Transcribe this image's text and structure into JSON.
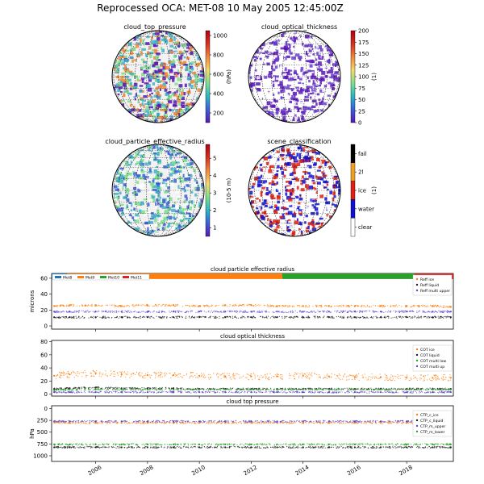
{
  "title": "Reprocessed OCA: MET-08 10 May 2005  12:45:00Z",
  "maps": [
    {
      "title": "cloud_top_pressure",
      "cbar_label": "(hPa)",
      "cbar_ticks": [
        "1000",
        "800",
        "600",
        "400",
        "200"
      ],
      "cbar_range": [
        100,
        1050
      ],
      "colormap": [
        "#5b16b8",
        "#3b5fd8",
        "#2bb6c8",
        "#7ee08a",
        "#f7d96b",
        "#f0883a",
        "#d7301f",
        "#b00010"
      ],
      "land_color": "#f2f2f2",
      "dominant_colors": [
        "#f0883a",
        "#3fb0c8",
        "#5b16b8",
        "#7ee08a"
      ]
    },
    {
      "title": "cloud_optical_thickness",
      "cbar_label": "(1)",
      "cbar_ticks": [
        "200",
        "175",
        "150",
        "125",
        "100",
        "75",
        "50",
        "25",
        "0"
      ],
      "cbar_range": [
        0,
        200
      ],
      "colormap": [
        "#5b16b8",
        "#3b5fd8",
        "#2bb6c8",
        "#7ee08a",
        "#f7d96b",
        "#f0883a",
        "#d7301f",
        "#b00010"
      ],
      "land_color": "#ffffff",
      "dominant_colors": [
        "#5b16b8",
        "#6a3fd0",
        "#ffffff"
      ]
    },
    {
      "title": "cloud_particle_effective_radius",
      "cbar_label": "(10-5 m)",
      "cbar_ticks": [
        "5",
        "4",
        "3",
        "2",
        "1"
      ],
      "cbar_range": [
        0.5,
        5.8
      ],
      "colormap": [
        "#5b16b8",
        "#3b5fd8",
        "#2bb6c8",
        "#7ee08a",
        "#f7d96b",
        "#f0883a",
        "#d7301f",
        "#b00010"
      ],
      "land_color": "#f2f2f2",
      "dominant_colors": [
        "#3fb0c8",
        "#3b5fd8",
        "#7ee08a",
        "#ffffff"
      ]
    },
    {
      "title": "scene_classification",
      "cbar_label": "(1)",
      "cbar_ticks": [
        "fail",
        "2l",
        "ice",
        "water",
        "clear"
      ],
      "categorical_colors": [
        "#000000",
        "#f0a020",
        "#e02010",
        "#1010d0",
        "#ffffff"
      ],
      "land_color": "#ffffff",
      "dominant_colors": [
        "#1010d0",
        "#e02010",
        "#ffffff"
      ]
    }
  ],
  "chart_data": [
    {
      "type": "scatter",
      "title": "cloud particle effective radius",
      "ylabel": "microns",
      "xlim": [
        2004.3,
        2019.8
      ],
      "ylim": [
        -4,
        66
      ],
      "yticks": [
        0,
        20,
        40,
        60
      ],
      "satellite_bar": {
        "y": 63,
        "segments": [
          {
            "name": "Met8",
            "color": "#1f77b4",
            "x": [
              2004.3,
              2004.9
            ]
          },
          {
            "name": "Met9",
            "color": "#ff7f0e",
            "x": [
              2004.9,
              2013.2
            ]
          },
          {
            "name": "Met10",
            "color": "#2ca02c",
            "x": [
              2013.2,
              2018.3
            ]
          },
          {
            "name": "Met11",
            "color": "#d62728",
            "x": [
              2018.3,
              2019.8
            ]
          }
        ]
      },
      "series": [
        {
          "name": "Reff ice",
          "color": "#ff7f0e",
          "x": [
            2004.4,
            2005.0,
            2006.0,
            2007.0,
            2008.0,
            2009.0,
            2010.0,
            2011.0,
            2012.0,
            2013.0,
            2014.0,
            2015.0,
            2016.0,
            2017.0,
            2018.0,
            2019.0,
            2019.7
          ],
          "y": [
            25,
            26,
            26,
            25,
            26,
            26,
            25,
            26,
            26,
            25,
            25,
            25,
            25,
            25,
            25,
            25,
            24
          ]
        },
        {
          "name": "Reff liquid",
          "color": "#1f1f1f",
          "x": [
            2004.4,
            2005.0,
            2006.0,
            2007.0,
            2008.0,
            2009.0,
            2010.0,
            2011.0,
            2012.0,
            2013.0,
            2014.0,
            2015.0,
            2016.0,
            2017.0,
            2018.0,
            2019.0,
            2019.7
          ],
          "y": [
            11,
            11,
            11,
            11,
            11,
            11,
            11,
            11,
            11,
            11,
            11,
            11,
            11,
            11,
            11,
            11,
            11
          ]
        },
        {
          "name": "Reff multi upper",
          "color": "#5a48d8",
          "x": [
            2004.4,
            2005.0,
            2006.0,
            2007.0,
            2008.0,
            2009.0,
            2010.0,
            2011.0,
            2012.0,
            2013.0,
            2014.0,
            2015.0,
            2016.0,
            2017.0,
            2018.0,
            2019.0,
            2019.7
          ],
          "y": [
            18,
            18,
            18,
            18,
            18,
            18,
            18,
            18,
            18,
            18,
            18,
            18,
            18,
            18,
            18,
            18,
            18
          ]
        }
      ],
      "legend": "top-right"
    },
    {
      "type": "scatter",
      "title": "cloud optical thickness",
      "ylabel": "",
      "xlim": [
        2004.3,
        2019.8
      ],
      "ylim": [
        -3,
        82
      ],
      "yticks": [
        0,
        20,
        40,
        60,
        80
      ],
      "series": [
        {
          "name": "COT ice",
          "color": "#ff7f0e",
          "x": [
            2004.4,
            2005.0,
            2006.0,
            2007.0,
            2008.0,
            2009.0,
            2010.0,
            2011.0,
            2012.0,
            2013.0,
            2014.0,
            2015.0,
            2016.0,
            2017.0,
            2018.0,
            2019.0,
            2019.7
          ],
          "y": [
            28,
            30,
            32,
            30,
            29,
            29,
            28,
            27,
            27,
            27,
            28,
            27,
            26,
            26,
            25,
            25,
            25
          ]
        },
        {
          "name": "COT liquid",
          "color": "#1f1f1f",
          "x": [
            2004.4,
            2005.0,
            2006.0,
            2007.0,
            2008.0,
            2009.0,
            2010.0,
            2011.0,
            2012.0,
            2013.0,
            2014.0,
            2015.0,
            2016.0,
            2017.0,
            2018.0,
            2019.0,
            2019.7
          ],
          "y": [
            8,
            9,
            10,
            9,
            9,
            9,
            8,
            8,
            8,
            8,
            8,
            8,
            8,
            8,
            8,
            8,
            8
          ]
        },
        {
          "name": "COT multi low",
          "color": "#2ca02c",
          "x": [
            2004.4,
            2005.0,
            2006.0,
            2007.0,
            2008.0,
            2009.0,
            2010.0,
            2011.0,
            2012.0,
            2013.0,
            2014.0,
            2015.0,
            2016.0,
            2017.0,
            2018.0,
            2019.0,
            2019.7
          ],
          "y": [
            6,
            7,
            7,
            7,
            7,
            7,
            7,
            7,
            7,
            7,
            7,
            7,
            7,
            7,
            7,
            7,
            7
          ]
        },
        {
          "name": "COT multi up",
          "color": "#5a48d8",
          "x": [
            2004.4,
            2005.0,
            2006.0,
            2007.0,
            2008.0,
            2009.0,
            2010.0,
            2011.0,
            2012.0,
            2013.0,
            2014.0,
            2015.0,
            2016.0,
            2017.0,
            2018.0,
            2019.0,
            2019.7
          ],
          "y": [
            3,
            3,
            3,
            3,
            3,
            3,
            3,
            3,
            3,
            3,
            3,
            3,
            3,
            3,
            3,
            3,
            3
          ]
        }
      ],
      "legend": "top-right"
    },
    {
      "type": "scatter",
      "title": "cloud top pressure",
      "ylabel": "hPa",
      "xlabel": "",
      "xlim": [
        2004.3,
        2019.8
      ],
      "ylim": [
        1120,
        -60
      ],
      "yticks": [
        0,
        250,
        500,
        750,
        1000
      ],
      "xticks": [
        2006,
        2008,
        2010,
        2012,
        2014,
        2016,
        2018
      ],
      "series": [
        {
          "name": "CTP_c_ice",
          "color": "#ff7f0e",
          "x": [
            2004.4,
            2005.0,
            2006.0,
            2007.0,
            2008.0,
            2009.0,
            2010.0,
            2011.0,
            2012.0,
            2013.0,
            2014.0,
            2015.0,
            2016.0,
            2017.0,
            2018.0,
            2019.0,
            2019.7
          ],
          "y": [
            290,
            300,
            300,
            300,
            300,
            300,
            300,
            300,
            300,
            300,
            300,
            300,
            300,
            300,
            300,
            300,
            300
          ]
        },
        {
          "name": "CTP_c_liquid",
          "color": "#1f1f1f",
          "x": [
            2004.4,
            2005.0,
            2006.0,
            2007.0,
            2008.0,
            2009.0,
            2010.0,
            2011.0,
            2012.0,
            2013.0,
            2014.0,
            2015.0,
            2016.0,
            2017.0,
            2018.0,
            2019.0,
            2019.7
          ],
          "y": [
            820,
            820,
            820,
            820,
            820,
            820,
            820,
            820,
            820,
            820,
            820,
            820,
            820,
            820,
            820,
            820,
            820
          ]
        },
        {
          "name": "CTP_m_upper",
          "color": "#5a48d8",
          "x": [
            2004.4,
            2005.0,
            2006.0,
            2007.0,
            2008.0,
            2009.0,
            2010.0,
            2011.0,
            2012.0,
            2013.0,
            2014.0,
            2015.0,
            2016.0,
            2017.0,
            2018.0,
            2019.0,
            2019.7
          ],
          "y": [
            270,
            270,
            270,
            270,
            270,
            270,
            270,
            270,
            270,
            270,
            270,
            270,
            270,
            270,
            270,
            270,
            270
          ]
        },
        {
          "name": "CTP_m_lower",
          "color": "#2ca02c",
          "x": [
            2004.4,
            2005.0,
            2006.0,
            2007.0,
            2008.0,
            2009.0,
            2010.0,
            2011.0,
            2012.0,
            2013.0,
            2014.0,
            2015.0,
            2016.0,
            2017.0,
            2018.0,
            2019.0,
            2019.7
          ],
          "y": [
            760,
            760,
            760,
            760,
            760,
            760,
            760,
            760,
            760,
            760,
            760,
            760,
            760,
            760,
            760,
            760,
            760
          ]
        }
      ],
      "legend": "top-right"
    }
  ]
}
